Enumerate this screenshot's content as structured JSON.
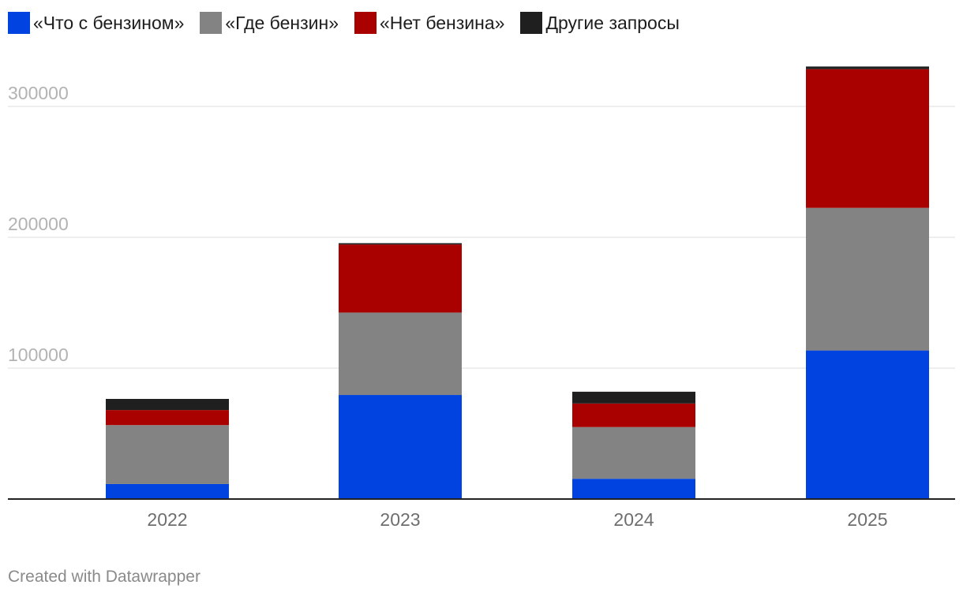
{
  "legend": [
    {
      "label": "«Что с бензином»",
      "color": "#0043e0",
      "icon": "square-swatch"
    },
    {
      "label": "«Где бензин»",
      "color": "#838383",
      "icon": "square-swatch"
    },
    {
      "label": "«Нет бензина»",
      "color": "#a90000",
      "icon": "square-swatch"
    },
    {
      "label": "Другие запросы",
      "color": "#1f1f1f",
      "icon": "square-swatch"
    }
  ],
  "chart_data": {
    "type": "bar",
    "stacked": true,
    "categories": [
      "2022",
      "2023",
      "2024",
      "2025"
    ],
    "series": [
      {
        "name": "«Что с бензином»",
        "color": "#0043e0",
        "values": [
          11500,
          79500,
          15500,
          113500
        ]
      },
      {
        "name": "«Где бензин»",
        "color": "#838383",
        "values": [
          45000,
          63000,
          39500,
          109000
        ]
      },
      {
        "name": "«Нет бензина»",
        "color": "#a90000",
        "values": [
          11500,
          52000,
          18000,
          106000
        ]
      },
      {
        "name": "Другие запросы",
        "color": "#1f1f1f",
        "values": [
          8500,
          1000,
          9000,
          2000
        ]
      }
    ],
    "y_ticks": [
      100000,
      200000,
      300000
    ],
    "y_tick_labels": [
      "100000",
      "200000",
      "300000"
    ],
    "ylim": [
      0,
      330000
    ],
    "grid": true,
    "legend_position": "top-left",
    "xlabel": "",
    "ylabel": ""
  },
  "footer": {
    "credit": "Created with Datawrapper"
  }
}
